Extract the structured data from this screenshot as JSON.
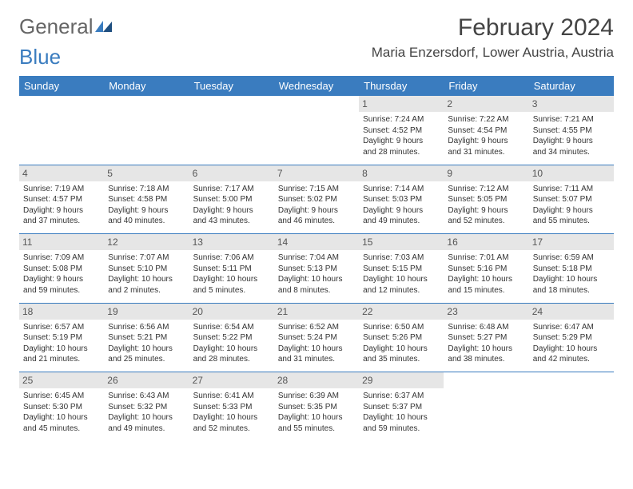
{
  "logo": {
    "part1": "General",
    "part2": "Blue"
  },
  "title": "February 2024",
  "location": "Maria Enzersdorf, Lower Austria, Austria",
  "colors": {
    "header_bg": "#3a7cbf",
    "daynum_bg": "#e6e6e6",
    "text": "#333333"
  },
  "dayHeaders": [
    "Sunday",
    "Monday",
    "Tuesday",
    "Wednesday",
    "Thursday",
    "Friday",
    "Saturday"
  ],
  "weeks": [
    [
      {
        "empty": true
      },
      {
        "empty": true
      },
      {
        "empty": true
      },
      {
        "empty": true
      },
      {
        "num": "1",
        "sunrise": "Sunrise: 7:24 AM",
        "sunset": "Sunset: 4:52 PM",
        "dl1": "Daylight: 9 hours",
        "dl2": "and 28 minutes."
      },
      {
        "num": "2",
        "sunrise": "Sunrise: 7:22 AM",
        "sunset": "Sunset: 4:54 PM",
        "dl1": "Daylight: 9 hours",
        "dl2": "and 31 minutes."
      },
      {
        "num": "3",
        "sunrise": "Sunrise: 7:21 AM",
        "sunset": "Sunset: 4:55 PM",
        "dl1": "Daylight: 9 hours",
        "dl2": "and 34 minutes."
      }
    ],
    [
      {
        "num": "4",
        "sunrise": "Sunrise: 7:19 AM",
        "sunset": "Sunset: 4:57 PM",
        "dl1": "Daylight: 9 hours",
        "dl2": "and 37 minutes."
      },
      {
        "num": "5",
        "sunrise": "Sunrise: 7:18 AM",
        "sunset": "Sunset: 4:58 PM",
        "dl1": "Daylight: 9 hours",
        "dl2": "and 40 minutes."
      },
      {
        "num": "6",
        "sunrise": "Sunrise: 7:17 AM",
        "sunset": "Sunset: 5:00 PM",
        "dl1": "Daylight: 9 hours",
        "dl2": "and 43 minutes."
      },
      {
        "num": "7",
        "sunrise": "Sunrise: 7:15 AM",
        "sunset": "Sunset: 5:02 PM",
        "dl1": "Daylight: 9 hours",
        "dl2": "and 46 minutes."
      },
      {
        "num": "8",
        "sunrise": "Sunrise: 7:14 AM",
        "sunset": "Sunset: 5:03 PM",
        "dl1": "Daylight: 9 hours",
        "dl2": "and 49 minutes."
      },
      {
        "num": "9",
        "sunrise": "Sunrise: 7:12 AM",
        "sunset": "Sunset: 5:05 PM",
        "dl1": "Daylight: 9 hours",
        "dl2": "and 52 minutes."
      },
      {
        "num": "10",
        "sunrise": "Sunrise: 7:11 AM",
        "sunset": "Sunset: 5:07 PM",
        "dl1": "Daylight: 9 hours",
        "dl2": "and 55 minutes."
      }
    ],
    [
      {
        "num": "11",
        "sunrise": "Sunrise: 7:09 AM",
        "sunset": "Sunset: 5:08 PM",
        "dl1": "Daylight: 9 hours",
        "dl2": "and 59 minutes."
      },
      {
        "num": "12",
        "sunrise": "Sunrise: 7:07 AM",
        "sunset": "Sunset: 5:10 PM",
        "dl1": "Daylight: 10 hours",
        "dl2": "and 2 minutes."
      },
      {
        "num": "13",
        "sunrise": "Sunrise: 7:06 AM",
        "sunset": "Sunset: 5:11 PM",
        "dl1": "Daylight: 10 hours",
        "dl2": "and 5 minutes."
      },
      {
        "num": "14",
        "sunrise": "Sunrise: 7:04 AM",
        "sunset": "Sunset: 5:13 PM",
        "dl1": "Daylight: 10 hours",
        "dl2": "and 8 minutes."
      },
      {
        "num": "15",
        "sunrise": "Sunrise: 7:03 AM",
        "sunset": "Sunset: 5:15 PM",
        "dl1": "Daylight: 10 hours",
        "dl2": "and 12 minutes."
      },
      {
        "num": "16",
        "sunrise": "Sunrise: 7:01 AM",
        "sunset": "Sunset: 5:16 PM",
        "dl1": "Daylight: 10 hours",
        "dl2": "and 15 minutes."
      },
      {
        "num": "17",
        "sunrise": "Sunrise: 6:59 AM",
        "sunset": "Sunset: 5:18 PM",
        "dl1": "Daylight: 10 hours",
        "dl2": "and 18 minutes."
      }
    ],
    [
      {
        "num": "18",
        "sunrise": "Sunrise: 6:57 AM",
        "sunset": "Sunset: 5:19 PM",
        "dl1": "Daylight: 10 hours",
        "dl2": "and 21 minutes."
      },
      {
        "num": "19",
        "sunrise": "Sunrise: 6:56 AM",
        "sunset": "Sunset: 5:21 PM",
        "dl1": "Daylight: 10 hours",
        "dl2": "and 25 minutes."
      },
      {
        "num": "20",
        "sunrise": "Sunrise: 6:54 AM",
        "sunset": "Sunset: 5:22 PM",
        "dl1": "Daylight: 10 hours",
        "dl2": "and 28 minutes."
      },
      {
        "num": "21",
        "sunrise": "Sunrise: 6:52 AM",
        "sunset": "Sunset: 5:24 PM",
        "dl1": "Daylight: 10 hours",
        "dl2": "and 31 minutes."
      },
      {
        "num": "22",
        "sunrise": "Sunrise: 6:50 AM",
        "sunset": "Sunset: 5:26 PM",
        "dl1": "Daylight: 10 hours",
        "dl2": "and 35 minutes."
      },
      {
        "num": "23",
        "sunrise": "Sunrise: 6:48 AM",
        "sunset": "Sunset: 5:27 PM",
        "dl1": "Daylight: 10 hours",
        "dl2": "and 38 minutes."
      },
      {
        "num": "24",
        "sunrise": "Sunrise: 6:47 AM",
        "sunset": "Sunset: 5:29 PM",
        "dl1": "Daylight: 10 hours",
        "dl2": "and 42 minutes."
      }
    ],
    [
      {
        "num": "25",
        "sunrise": "Sunrise: 6:45 AM",
        "sunset": "Sunset: 5:30 PM",
        "dl1": "Daylight: 10 hours",
        "dl2": "and 45 minutes."
      },
      {
        "num": "26",
        "sunrise": "Sunrise: 6:43 AM",
        "sunset": "Sunset: 5:32 PM",
        "dl1": "Daylight: 10 hours",
        "dl2": "and 49 minutes."
      },
      {
        "num": "27",
        "sunrise": "Sunrise: 6:41 AM",
        "sunset": "Sunset: 5:33 PM",
        "dl1": "Daylight: 10 hours",
        "dl2": "and 52 minutes."
      },
      {
        "num": "28",
        "sunrise": "Sunrise: 6:39 AM",
        "sunset": "Sunset: 5:35 PM",
        "dl1": "Daylight: 10 hours",
        "dl2": "and 55 minutes."
      },
      {
        "num": "29",
        "sunrise": "Sunrise: 6:37 AM",
        "sunset": "Sunset: 5:37 PM",
        "dl1": "Daylight: 10 hours",
        "dl2": "and 59 minutes."
      },
      {
        "empty": true
      },
      {
        "empty": true
      }
    ]
  ]
}
